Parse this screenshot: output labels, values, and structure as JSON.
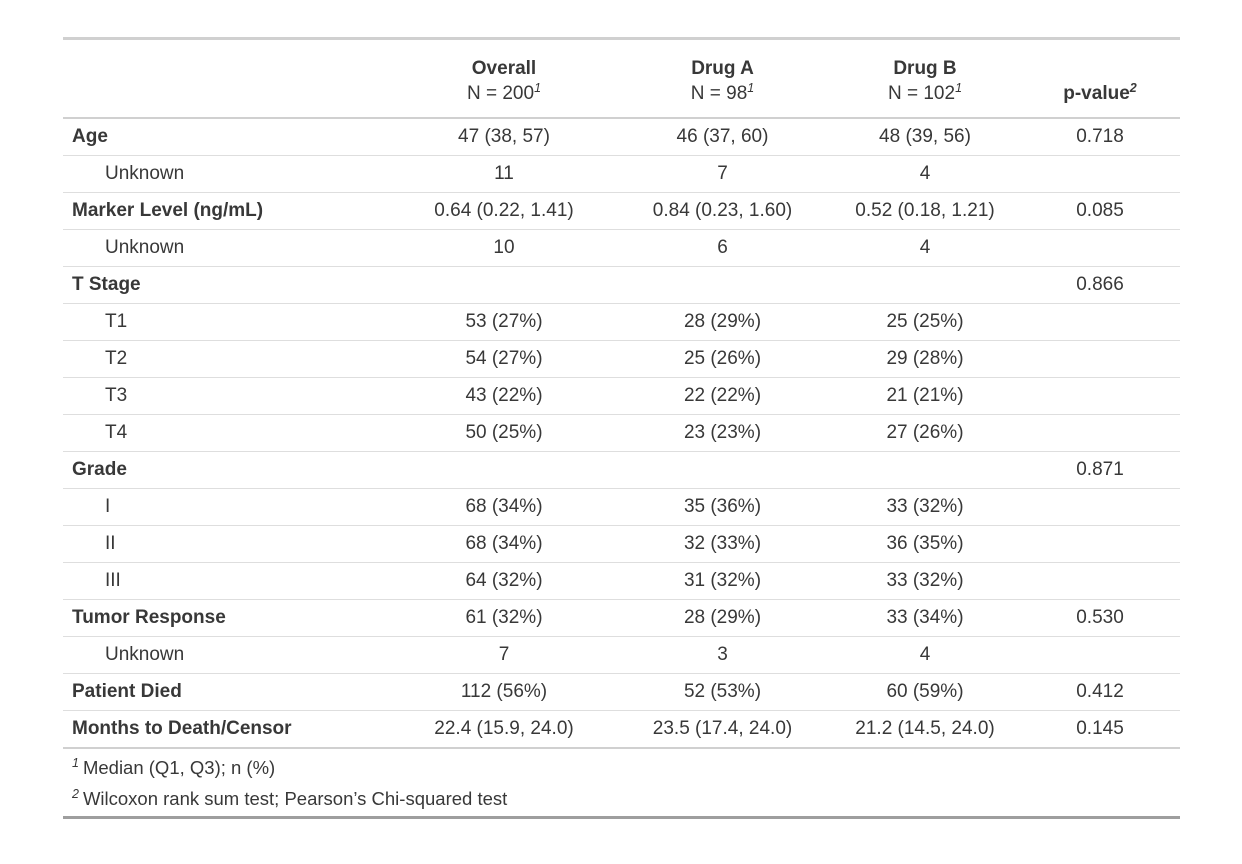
{
  "chart_data": {
    "type": "table",
    "title": "",
    "columns": [
      {
        "id": "label",
        "title": "",
        "subtitle": "",
        "footnote_mark": ""
      },
      {
        "id": "overall",
        "title": "Overall",
        "subtitle": "N = 200",
        "footnote_mark": "1"
      },
      {
        "id": "drug_a",
        "title": "Drug A",
        "subtitle": "N = 98",
        "footnote_mark": "1"
      },
      {
        "id": "drug_b",
        "title": "Drug B",
        "subtitle": "N = 102",
        "footnote_mark": "1"
      },
      {
        "id": "p_value",
        "title": "p-value",
        "subtitle": "",
        "footnote_mark": "2"
      }
    ],
    "rows": [
      {
        "label": "Age",
        "indent": false,
        "values": [
          "47 (38, 57)",
          "46 (37, 60)",
          "48 (39, 56)",
          "0.718"
        ]
      },
      {
        "label": "Unknown",
        "indent": true,
        "values": [
          "11",
          "7",
          "4",
          ""
        ]
      },
      {
        "label": "Marker Level (ng/mL)",
        "indent": false,
        "values": [
          "0.64 (0.22, 1.41)",
          "0.84 (0.23, 1.60)",
          "0.52 (0.18, 1.21)",
          "0.085"
        ]
      },
      {
        "label": "Unknown",
        "indent": true,
        "values": [
          "10",
          "6",
          "4",
          ""
        ]
      },
      {
        "label": "T Stage",
        "indent": false,
        "values": [
          "",
          "",
          "",
          "0.866"
        ]
      },
      {
        "label": "T1",
        "indent": true,
        "values": [
          "53 (27%)",
          "28 (29%)",
          "25 (25%)",
          ""
        ]
      },
      {
        "label": "T2",
        "indent": true,
        "values": [
          "54 (27%)",
          "25 (26%)",
          "29 (28%)",
          ""
        ]
      },
      {
        "label": "T3",
        "indent": true,
        "values": [
          "43 (22%)",
          "22 (22%)",
          "21 (21%)",
          ""
        ]
      },
      {
        "label": "T4",
        "indent": true,
        "values": [
          "50 (25%)",
          "23 (23%)",
          "27 (26%)",
          ""
        ]
      },
      {
        "label": "Grade",
        "indent": false,
        "values": [
          "",
          "",
          "",
          "0.871"
        ]
      },
      {
        "label": "I",
        "indent": true,
        "values": [
          "68 (34%)",
          "35 (36%)",
          "33 (32%)",
          ""
        ]
      },
      {
        "label": "II",
        "indent": true,
        "values": [
          "68 (34%)",
          "32 (33%)",
          "36 (35%)",
          ""
        ]
      },
      {
        "label": "III",
        "indent": true,
        "values": [
          "64 (32%)",
          "31 (32%)",
          "33 (32%)",
          ""
        ]
      },
      {
        "label": "Tumor Response",
        "indent": false,
        "values": [
          "61 (32%)",
          "28 (29%)",
          "33 (34%)",
          "0.530"
        ]
      },
      {
        "label": "Unknown",
        "indent": true,
        "values": [
          "7",
          "3",
          "4",
          ""
        ]
      },
      {
        "label": "Patient Died",
        "indent": false,
        "values": [
          "112 (56%)",
          "52 (53%)",
          "60 (59%)",
          "0.412"
        ]
      },
      {
        "label": "Months to Death/Censor",
        "indent": false,
        "values": [
          "22.4 (15.9, 24.0)",
          "23.5 (17.4, 24.0)",
          "21.2 (14.5, 24.0)",
          "0.145"
        ]
      }
    ],
    "footnotes": [
      {
        "mark": "1",
        "text": "Median (Q1, Q3); n (%)"
      },
      {
        "mark": "2",
        "text": "Wilcoxon rank sum test; Pearson’s Chi-squared test"
      }
    ],
    "layout": {
      "grid": "horizontal-rules-only",
      "legend_position": "none",
      "column_align": [
        "left",
        "center",
        "center",
        "center",
        "center"
      ]
    }
  },
  "style": {
    "text_color": "#383838",
    "border_light": "#d0d0d0",
    "border_row": "#dedede",
    "border_bottom_dark": "#9e9e9e",
    "background": "#ffffff"
  }
}
